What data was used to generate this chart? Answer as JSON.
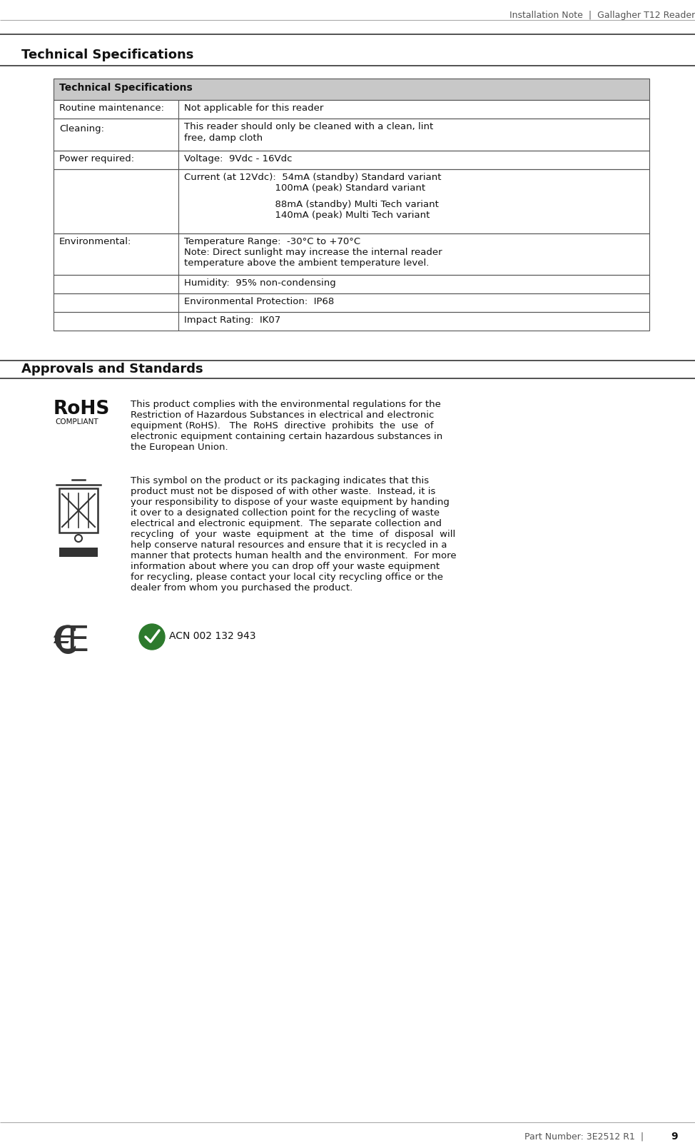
{
  "header_text": "Installation Note  |  Gallagher T12 Reader",
  "footer_text": "Part Number: 3E2512 R1  |  ",
  "footer_page": "9",
  "section1_title": "Technical Specifications",
  "table_header": "Technical Specifications",
  "section2_title": "Approvals and Standards",
  "table_header_bg": "#c8c8c8",
  "table_border_color": "#555555",
  "rohs_text_lines": [
    "This product complies with the environmental regulations for the",
    "Restriction of Hazardous Substances in electrical and electronic",
    "equipment (RoHS).   The  RoHS  directive  prohibits  the  use  of",
    "electronic equipment containing certain hazardous substances in",
    "the European Union."
  ],
  "waste_text_lines": [
    "This symbol on the product or its packaging indicates that this",
    "product must not be disposed of with other waste.  Instead, it is",
    "your responsibility to dispose of your waste equipment by handing",
    "it over to a designated collection point for the recycling of waste",
    "electrical and electronic equipment.  The separate collection and",
    "recycling  of  your  waste  equipment  at  the  time  of  disposal  will",
    "help conserve natural resources and ensure that it is recycled in a",
    "manner that protects human health and the environment.  For more",
    "information about where you can drop off your waste equipment",
    "for recycling, please contact your local city recycling office or the",
    "dealer from whom you purchased the product."
  ],
  "acn_text": "ACN 002 132 943",
  "bg_color": "#ffffff",
  "text_color": "#222222",
  "line_color": "#888888"
}
